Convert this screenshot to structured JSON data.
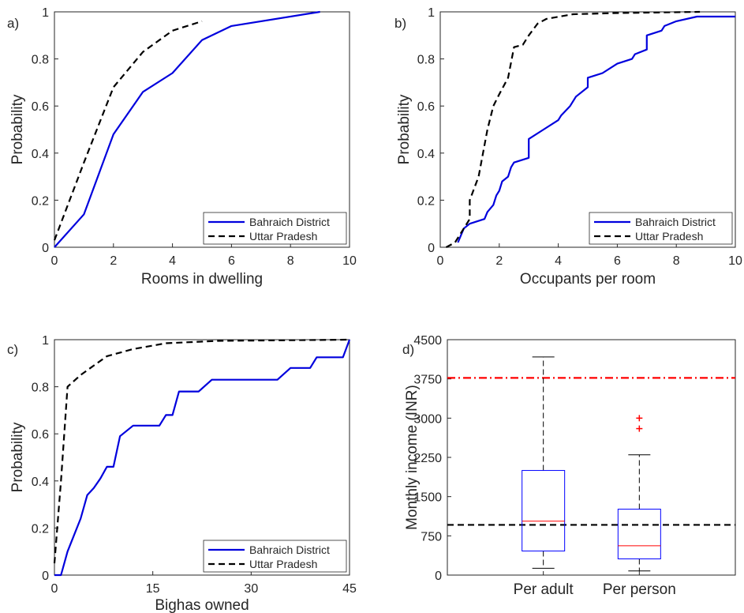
{
  "chart_data": [
    {
      "panel_label": "a)",
      "type": "line",
      "xlabel": "Rooms in dwelling",
      "ylabel": "Probability",
      "xlim": [
        0,
        10
      ],
      "ylim": [
        0,
        1
      ],
      "x_ticks": [
        "0",
        "2",
        "4",
        "6",
        "8",
        "10"
      ],
      "y_ticks": [
        "0",
        "0.2",
        "0.4",
        "0.6",
        "0.8",
        "1"
      ],
      "legend_position": "bottom-right",
      "series": [
        {
          "name": "Bahraich District",
          "color": "#0000dd",
          "style": "solid",
          "points": [
            [
              0,
              0
            ],
            [
              1,
              0.14
            ],
            [
              2,
              0.48
            ],
            [
              3,
              0.66
            ],
            [
              4,
              0.74
            ],
            [
              5,
              0.88
            ],
            [
              6,
              0.94
            ],
            [
              9,
              1.0
            ]
          ]
        },
        {
          "name": "Uttar Pradesh",
          "color": "#000000",
          "style": "dashed",
          "points": [
            [
              0,
              0.03
            ],
            [
              1,
              0.36
            ],
            [
              2,
              0.68
            ],
            [
              3,
              0.83
            ],
            [
              4,
              0.92
            ],
            [
              5,
              0.96
            ]
          ]
        }
      ]
    },
    {
      "panel_label": "b)",
      "type": "line",
      "xlabel": "Occupants per room",
      "ylabel": "Probability",
      "xlim": [
        0,
        10
      ],
      "ylim": [
        0,
        1
      ],
      "x_ticks": [
        "0",
        "2",
        "4",
        "6",
        "8",
        "10"
      ],
      "y_ticks": [
        "0",
        "0.2",
        "0.4",
        "0.6",
        "0.8",
        "1"
      ],
      "legend_position": "bottom-right",
      "series": [
        {
          "name": "Bahraich District",
          "color": "#0000dd",
          "style": "solid",
          "points": [
            [
              0.6,
              0.02
            ],
            [
              0.8,
              0.08
            ],
            [
              1.0,
              0.1
            ],
            [
              1.5,
              0.12
            ],
            [
              1.6,
              0.15
            ],
            [
              1.8,
              0.18
            ],
            [
              1.9,
              0.22
            ],
            [
              2.0,
              0.24
            ],
            [
              2.1,
              0.28
            ],
            [
              2.3,
              0.3
            ],
            [
              2.4,
              0.34
            ],
            [
              2.5,
              0.36
            ],
            [
              3.0,
              0.38
            ],
            [
              3.0,
              0.46
            ],
            [
              3.5,
              0.5
            ],
            [
              4.0,
              0.54
            ],
            [
              4.1,
              0.56
            ],
            [
              4.4,
              0.6
            ],
            [
              4.6,
              0.64
            ],
            [
              5.0,
              0.68
            ],
            [
              5.0,
              0.72
            ],
            [
              5.5,
              0.74
            ],
            [
              6.0,
              0.78
            ],
            [
              6.5,
              0.8
            ],
            [
              6.6,
              0.82
            ],
            [
              7.0,
              0.84
            ],
            [
              7.0,
              0.9
            ],
            [
              7.5,
              0.92
            ],
            [
              7.6,
              0.94
            ],
            [
              8.0,
              0.96
            ],
            [
              8.7,
              0.98
            ],
            [
              10.0,
              0.98
            ]
          ]
        },
        {
          "name": "Uttar Pradesh",
          "color": "#000000",
          "style": "dashed",
          "points": [
            [
              0.2,
              0.0
            ],
            [
              0.5,
              0.02
            ],
            [
              0.7,
              0.06
            ],
            [
              1.0,
              0.12
            ],
            [
              1.0,
              0.2
            ],
            [
              1.3,
              0.3
            ],
            [
              1.6,
              0.5
            ],
            [
              1.8,
              0.6
            ],
            [
              2.0,
              0.65
            ],
            [
              2.3,
              0.72
            ],
            [
              2.5,
              0.85
            ],
            [
              2.8,
              0.86
            ],
            [
              3.0,
              0.9
            ],
            [
              3.3,
              0.95
            ],
            [
              3.6,
              0.97
            ],
            [
              4.5,
              0.99
            ],
            [
              6.0,
              0.995
            ],
            [
              8.8,
              1.0
            ]
          ]
        }
      ]
    },
    {
      "panel_label": "c)",
      "type": "line",
      "xlabel": "Bighas owned",
      "ylabel": "Probability",
      "xlim": [
        0,
        45
      ],
      "ylim": [
        0,
        1
      ],
      "x_ticks": [
        "0",
        "15",
        "30",
        "45"
      ],
      "y_ticks": [
        "0",
        "0.2",
        "0.4",
        "0.6",
        "0.8",
        "1"
      ],
      "legend_position": "bottom-right",
      "series": [
        {
          "name": "Bahraich District",
          "color": "#0000dd",
          "style": "solid",
          "points": [
            [
              0,
              0
            ],
            [
              1,
              0
            ],
            [
              2,
              0.1
            ],
            [
              3,
              0.17
            ],
            [
              4,
              0.24
            ],
            [
              5,
              0.34
            ],
            [
              6,
              0.37
            ],
            [
              7,
              0.41
            ],
            [
              8,
              0.46
            ],
            [
              9,
              0.46
            ],
            [
              10,
              0.59
            ],
            [
              12,
              0.635
            ],
            [
              16,
              0.635
            ],
            [
              17,
              0.68
            ],
            [
              18,
              0.68
            ],
            [
              19,
              0.78
            ],
            [
              22,
              0.78
            ],
            [
              24,
              0.83
            ],
            [
              34,
              0.83
            ],
            [
              36,
              0.88
            ],
            [
              39,
              0.88
            ],
            [
              40,
              0.925
            ],
            [
              44,
              0.925
            ],
            [
              45,
              1.0
            ]
          ]
        },
        {
          "name": "Uttar Pradesh",
          "color": "#000000",
          "style": "dashed",
          "points": [
            [
              0,
              0.05
            ],
            [
              1,
              0.4
            ],
            [
              2,
              0.8
            ],
            [
              4,
              0.85
            ],
            [
              8,
              0.93
            ],
            [
              12,
              0.96
            ],
            [
              17,
              0.985
            ],
            [
              25,
              0.995
            ],
            [
              45,
              1.0
            ]
          ]
        }
      ]
    },
    {
      "panel_label": "d)",
      "type": "box",
      "ylabel": "Monthly income (INR)",
      "ylim": [
        0,
        4500
      ],
      "y_ticks": [
        "0",
        "750",
        "1500",
        "2250",
        "3000",
        "3750",
        "4500"
      ],
      "categories": [
        "Per adult",
        "Per person"
      ],
      "boxes": [
        {
          "category": "Per adult",
          "whisker_low": 130,
          "q1": 460,
          "median": 1030,
          "q3": 2000,
          "whisker_high": 4170,
          "outliers": []
        },
        {
          "category": "Per person",
          "whisker_low": 80,
          "q1": 310,
          "median": 560,
          "q3": 1260,
          "whisker_high": 2300,
          "outliers": [
            2800,
            3000
          ]
        }
      ],
      "reference_lines": [
        {
          "value": 3770,
          "color": "#ff0000",
          "style": "dash-dot"
        },
        {
          "value": 960,
          "color": "#000000",
          "style": "dashed"
        }
      ],
      "colors": {
        "box": "#0000ff",
        "median": "#ff0000",
        "whisker": "#000000",
        "outlier": "#ff0000"
      }
    }
  ]
}
